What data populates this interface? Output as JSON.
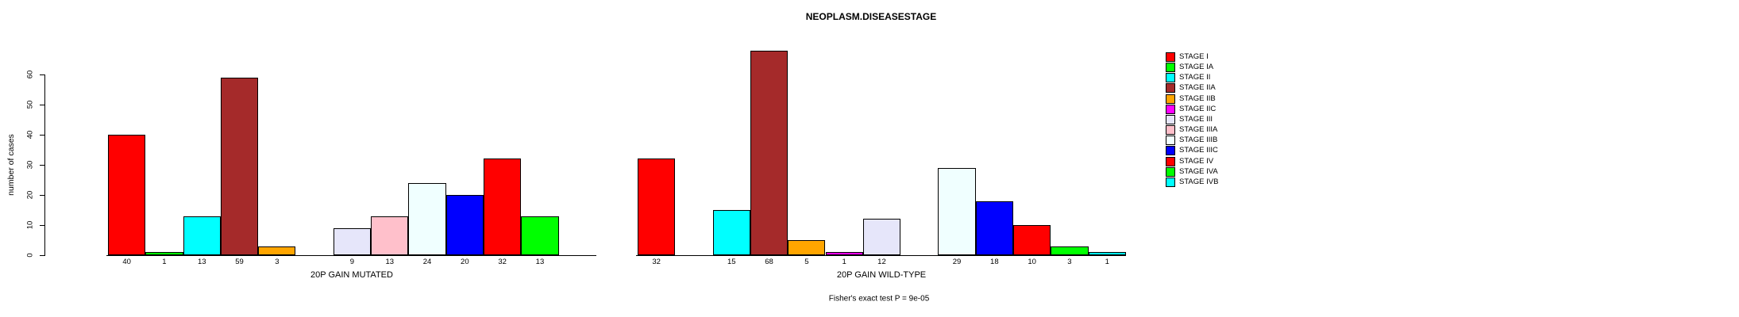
{
  "title": "NEOPLASM.DISEASESTAGE",
  "y_axis": {
    "label": "number of cases",
    "ticks": [
      0,
      10,
      20,
      30,
      40,
      50,
      60
    ]
  },
  "footer": "Fisher's exact test P = 9e-05",
  "legend": {
    "entries": [
      {
        "label": "STAGE I",
        "color": "#FF0000"
      },
      {
        "label": "STAGE IA",
        "color": "#00FF00"
      },
      {
        "label": "STAGE II",
        "color": "#00FFFF"
      },
      {
        "label": "STAGE IIA",
        "color": "#A52A2A"
      },
      {
        "label": "STAGE IIB",
        "color": "#FFA500"
      },
      {
        "label": "STAGE IIC",
        "color": "#FF00FF"
      },
      {
        "label": "STAGE III",
        "color": "#E6E6FA"
      },
      {
        "label": "STAGE IIIA",
        "color": "#FFC0CB"
      },
      {
        "label": "STAGE IIIB",
        "color": "#F0FFFF"
      },
      {
        "label": "STAGE IIIC",
        "color": "#0000FF"
      },
      {
        "label": "STAGE IV",
        "color": "#FF0000"
      },
      {
        "label": "STAGE IVA",
        "color": "#00FF00"
      },
      {
        "label": "STAGE IVB",
        "color": "#00FFFF"
      }
    ]
  },
  "chart_data": {
    "type": "bar",
    "title": "NEOPLASM.DISEASESTAGE",
    "ylabel": "number of cases",
    "ylim": [
      0,
      60
    ],
    "grid": false,
    "legend_position": "right",
    "categories": [
      "STAGE I",
      "STAGE IA",
      "STAGE II",
      "STAGE IIA",
      "STAGE IIB",
      "STAGE IIC",
      "STAGE III",
      "STAGE IIIA",
      "STAGE IIIB",
      "STAGE IIIC",
      "STAGE IV",
      "STAGE IVA",
      "STAGE IVB"
    ],
    "colors": [
      "#FF0000",
      "#00FF00",
      "#00FFFF",
      "#A52A2A",
      "#FFA500",
      "#FF00FF",
      "#E6E6FA",
      "#FFC0CB",
      "#F0FFFF",
      "#0000FF",
      "#FF0000",
      "#00FF00",
      "#00FFFF"
    ],
    "series": [
      {
        "name": "20P GAIN MUTATED",
        "values": [
          40,
          1,
          13,
          59,
          3,
          0,
          9,
          13,
          24,
          20,
          32,
          13,
          0
        ]
      },
      {
        "name": "20P GAIN WILD-TYPE",
        "values": [
          32,
          0,
          15,
          68,
          5,
          1,
          12,
          0,
          29,
          18,
          10,
          3,
          1
        ]
      }
    ],
    "annotation": "Fisher's exact test P = 9e-05"
  }
}
